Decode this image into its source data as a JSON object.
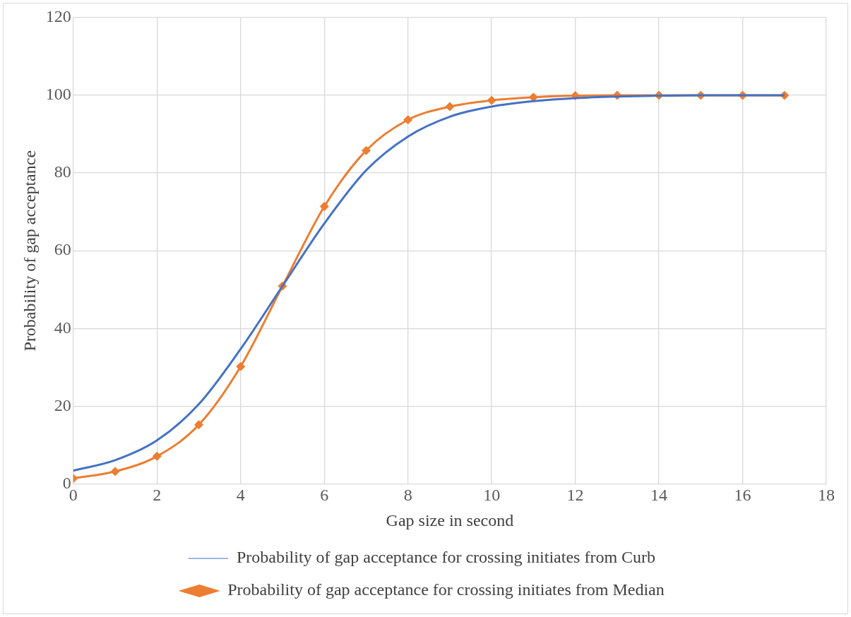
{
  "chart_data": {
    "type": "line",
    "xlabel": "Gap size in second",
    "ylabel": "Probability of gap acceptance",
    "xlim": [
      0,
      18
    ],
    "xticks": [
      0,
      2,
      4,
      6,
      8,
      10,
      12,
      14,
      16,
      18
    ],
    "ylim": [
      0,
      120
    ],
    "yticks": [
      0,
      20,
      40,
      60,
      80,
      100,
      120
    ],
    "grid": true,
    "legend": "bottom",
    "line_style": "solid",
    "x": [
      0,
      1,
      2,
      3,
      4,
      5,
      6,
      7,
      8,
      9,
      10,
      11,
      12,
      13,
      14,
      15,
      16,
      17
    ],
    "series": [
      {
        "name": "Probability of gap acceptance for crossing initiates from Curb",
        "color": "#4472c4",
        "marker": "none",
        "values": [
          3.4,
          6.1,
          11.2,
          20.5,
          34.7,
          50.9,
          67,
          80.7,
          89.4,
          94.5,
          97.1,
          98.5,
          99.3,
          99.7,
          99.9,
          100,
          100,
          100
        ]
      },
      {
        "name": "Probability of gap acceptance for crossing initiates from Median",
        "color": "#ed7d31",
        "marker": "diamond",
        "values": [
          1.4,
          3.2,
          7.1,
          15.2,
          30.2,
          50.9,
          71.4,
          85.8,
          93.7,
          97.1,
          98.7,
          99.5,
          99.9,
          100,
          100,
          100,
          100,
          100
        ]
      }
    ]
  }
}
